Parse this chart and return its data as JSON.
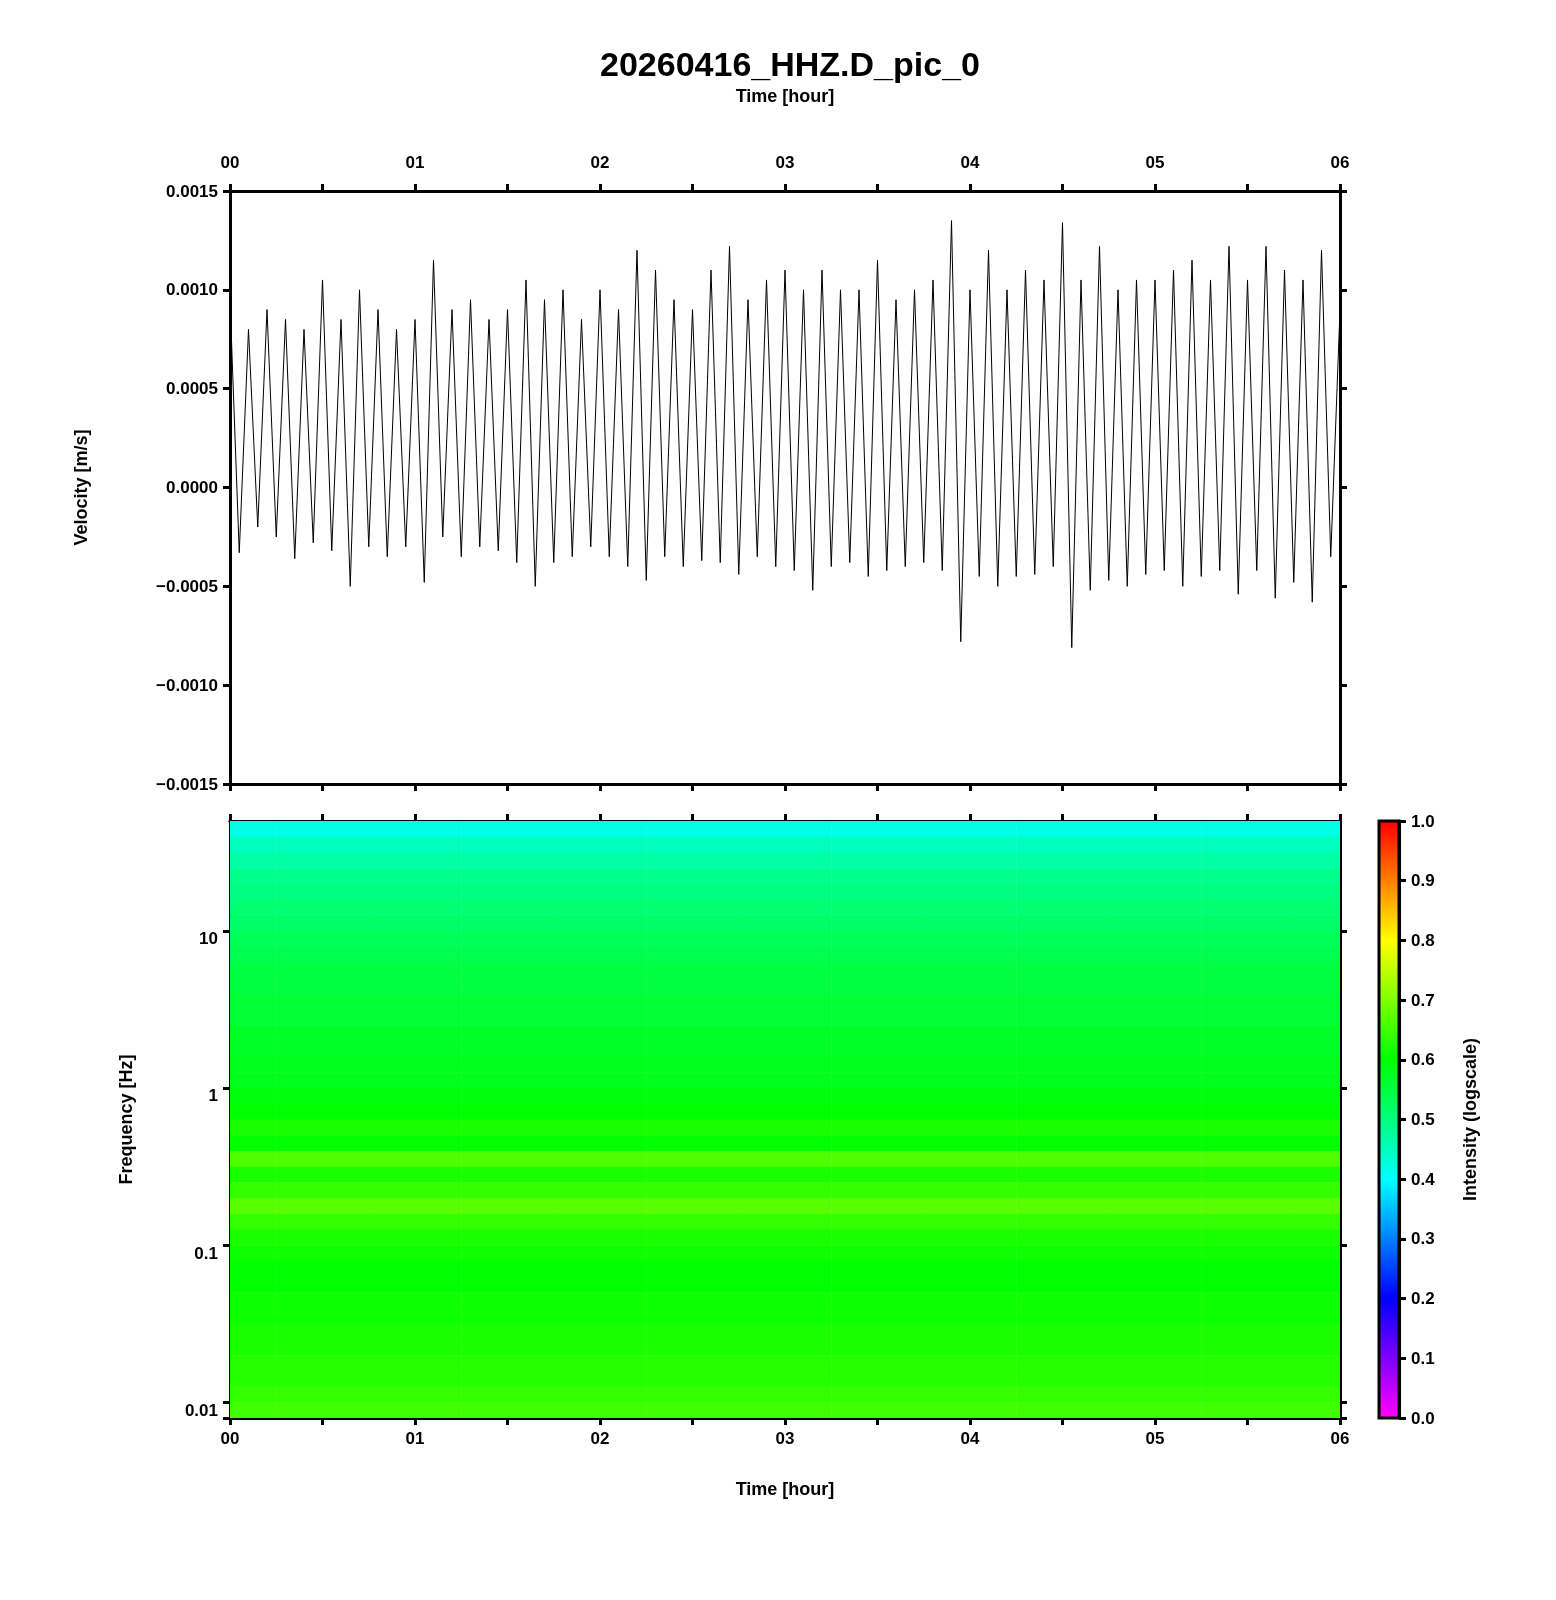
{
  "chart_data": [
    {
      "type": "line",
      "title": "20260416_HHZ.D_pic_0",
      "xlabel": "Time [hour]",
      "ylabel": "Velocity [m/s]",
      "x": [
        0,
        0.05,
        0.1,
        0.15,
        0.2,
        0.25,
        0.3,
        0.35,
        0.4,
        0.45,
        0.5,
        0.55,
        0.6,
        0.65,
        0.7,
        0.75,
        0.8,
        0.85,
        0.9,
        0.95,
        1,
        1.05,
        1.1,
        1.15,
        1.2,
        1.25,
        1.3,
        1.35,
        1.4,
        1.45,
        1.5,
        1.55,
        1.6,
        1.65,
        1.7,
        1.75,
        1.8,
        1.85,
        1.9,
        1.95,
        2,
        2.05,
        2.1,
        2.15,
        2.2,
        2.25,
        2.3,
        2.35,
        2.4,
        2.45,
        2.5,
        2.55,
        2.6,
        2.65,
        2.7,
        2.75,
        2.8,
        2.85,
        2.9,
        2.95,
        3,
        3.05,
        3.1,
        3.15,
        3.2,
        3.25,
        3.3,
        3.35,
        3.4,
        3.45,
        3.5,
        3.55,
        3.6,
        3.65,
        3.7,
        3.75,
        3.8,
        3.85,
        3.9,
        3.95,
        4,
        4.05,
        4.1,
        4.15,
        4.2,
        4.25,
        4.3,
        4.35,
        4.4,
        4.45,
        4.5,
        4.55,
        4.6,
        4.65,
        4.7,
        4.75,
        4.8,
        4.85,
        4.9,
        4.95,
        5,
        5.05,
        5.1,
        5.15,
        5.2,
        5.25,
        5.3,
        5.35,
        5.4,
        5.45,
        5.5,
        5.55,
        5.6,
        5.65,
        5.7,
        5.75,
        5.8,
        5.85,
        5.9,
        5.95,
        6
      ],
      "series": [
        {
          "color": "#000000",
          "values": [
            0.00095,
            -0.00033,
            0.0008,
            -0.0002,
            0.0009,
            -0.00025,
            0.00085,
            -0.00036,
            0.0008,
            -0.00028,
            0.00105,
            -0.00032,
            0.00085,
            -0.0005,
            0.001,
            -0.0003,
            0.0009,
            -0.00035,
            0.0008,
            -0.0003,
            0.00085,
            -0.00048,
            0.00115,
            -0.00025,
            0.0009,
            -0.00035,
            0.00095,
            -0.0003,
            0.00085,
            -0.00032,
            0.0009,
            -0.00038,
            0.00105,
            -0.0005,
            0.00095,
            -0.00038,
            0.001,
            -0.00035,
            0.00085,
            -0.0003,
            0.001,
            -0.00035,
            0.0009,
            -0.0004,
            0.0012,
            -0.00047,
            0.0011,
            -0.00035,
            0.00095,
            -0.0004,
            0.0009,
            -0.00037,
            0.0011,
            -0.00038,
            0.00122,
            -0.00044,
            0.00095,
            -0.00035,
            0.00105,
            -0.0004,
            0.0011,
            -0.00042,
            0.001,
            -0.00052,
            0.0011,
            -0.0004,
            0.001,
            -0.00038,
            0.001,
            -0.00045,
            0.00115,
            -0.00042,
            0.00095,
            -0.0004,
            0.001,
            -0.00038,
            0.00105,
            -0.00042,
            0.00135,
            -0.00078,
            0.001,
            -0.00045,
            0.0012,
            -0.0005,
            0.001,
            -0.00045,
            0.0011,
            -0.00044,
            0.00105,
            -0.0004,
            0.00134,
            -0.00081,
            0.00105,
            -0.00052,
            0.00122,
            -0.00047,
            0.001,
            -0.0005,
            0.00105,
            -0.00044,
            0.00105,
            -0.00042,
            0.0011,
            -0.0005,
            0.00115,
            -0.00045,
            0.00105,
            -0.00042,
            0.00122,
            -0.00054,
            0.00105,
            -0.00042,
            0.00122,
            -0.00056,
            0.0011,
            -0.00048,
            0.00105,
            -0.00058,
            0.0012,
            -0.00035,
            0.0009
          ]
        }
      ],
      "xlim": [
        0,
        6
      ],
      "xticks": [
        {
          "value": 0,
          "label": "00"
        },
        {
          "value": 0.5,
          "label": null
        },
        {
          "value": 1,
          "label": "01"
        },
        {
          "value": 1.5,
          "label": null
        },
        {
          "value": 2,
          "label": "02"
        },
        {
          "value": 2.5,
          "label": null
        },
        {
          "value": 3,
          "label": "03"
        },
        {
          "value": 3.5,
          "label": null
        },
        {
          "value": 4,
          "label": "04"
        },
        {
          "value": 4.5,
          "label": null
        },
        {
          "value": 5,
          "label": "05"
        },
        {
          "value": 5.5,
          "label": null
        },
        {
          "value": 6,
          "label": "06"
        }
      ],
      "ylim": [
        -0.0015,
        0.0015
      ],
      "yticks": [
        {
          "value": -0.0015,
          "label": "−0.0015"
        },
        {
          "value": -0.001,
          "label": "−0.0010"
        },
        {
          "value": -0.0005,
          "label": "−0.0005"
        },
        {
          "value": 0,
          "label": "0.0000"
        },
        {
          "value": 0.0005,
          "label": "0.0005"
        },
        {
          "value": 0.001,
          "label": "0.0010"
        },
        {
          "value": 0.0015,
          "label": "0.0015"
        }
      ]
    },
    {
      "type": "heatmap",
      "xlabel": "Time [hour]",
      "ylabel": "Frequency [Hz]",
      "clabel": "Intensity (logscale)",
      "categories": [
        "00",
        null,
        "01",
        null,
        "02",
        null,
        "03",
        null,
        "04",
        null,
        "05",
        null,
        "06"
      ],
      "y_categories": [
        null,
        null,
        null,
        null,
        null,
        null,
        null,
        "10",
        null,
        null,
        null,
        null,
        null,
        null,
        null,
        null,
        null,
        "1",
        null,
        null,
        null,
        null,
        null,
        null,
        null,
        null,
        null,
        "0.1",
        null,
        null,
        null,
        null,
        null,
        null,
        null,
        null,
        null,
        "0.01"
      ],
      "cells": [
        [
          0.42,
          0.42,
          0.42,
          0.42,
          0.42,
          0.42,
          0.42,
          0.42,
          0.42,
          0.42,
          0.42,
          0.42,
          0.42
        ],
        [
          0.45,
          0.45,
          0.45,
          0.45,
          0.45,
          0.45,
          0.45,
          0.45,
          0.45,
          0.45,
          0.45,
          0.45,
          0.45
        ],
        [
          0.47,
          0.47,
          0.47,
          0.47,
          0.47,
          0.47,
          0.47,
          0.47,
          0.47,
          0.47,
          0.47,
          0.47,
          0.47
        ],
        [
          0.49,
          0.49,
          0.49,
          0.49,
          0.49,
          0.49,
          0.49,
          0.49,
          0.49,
          0.49,
          0.49,
          0.49,
          0.49
        ],
        [
          0.5,
          0.5,
          0.5,
          0.5,
          0.5,
          0.5,
          0.5,
          0.5,
          0.5,
          0.5,
          0.5,
          0.5,
          0.5
        ],
        [
          0.51,
          0.51,
          0.51,
          0.51,
          0.51,
          0.51,
          0.51,
          0.51,
          0.51,
          0.51,
          0.51,
          0.51,
          0.51
        ],
        [
          0.52,
          0.52,
          0.52,
          0.52,
          0.52,
          0.52,
          0.52,
          0.52,
          0.52,
          0.52,
          0.52,
          0.52,
          0.52
        ],
        [
          0.53,
          0.53,
          0.53,
          0.53,
          0.53,
          0.53,
          0.53,
          0.53,
          0.53,
          0.53,
          0.53,
          0.53,
          0.53
        ],
        [
          0.54,
          0.54,
          0.54,
          0.54,
          0.54,
          0.54,
          0.54,
          0.54,
          0.54,
          0.54,
          0.54,
          0.54,
          0.54
        ],
        [
          0.55,
          0.55,
          0.55,
          0.55,
          0.55,
          0.55,
          0.55,
          0.55,
          0.55,
          0.55,
          0.55,
          0.55,
          0.55
        ],
        [
          0.55,
          0.55,
          0.55,
          0.55,
          0.55,
          0.55,
          0.55,
          0.55,
          0.55,
          0.55,
          0.55,
          0.55,
          0.55
        ],
        [
          0.56,
          0.56,
          0.56,
          0.56,
          0.56,
          0.56,
          0.56,
          0.56,
          0.56,
          0.56,
          0.56,
          0.56,
          0.56
        ],
        [
          0.56,
          0.56,
          0.56,
          0.56,
          0.56,
          0.56,
          0.56,
          0.56,
          0.56,
          0.56,
          0.56,
          0.56,
          0.56
        ],
        [
          0.57,
          0.57,
          0.57,
          0.57,
          0.57,
          0.57,
          0.57,
          0.57,
          0.57,
          0.57,
          0.57,
          0.57,
          0.57
        ],
        [
          0.57,
          0.57,
          0.57,
          0.57,
          0.57,
          0.57,
          0.57,
          0.57,
          0.57,
          0.57,
          0.57,
          0.57,
          0.57
        ],
        [
          0.58,
          0.58,
          0.58,
          0.58,
          0.58,
          0.58,
          0.58,
          0.58,
          0.58,
          0.58,
          0.58,
          0.58,
          0.58
        ],
        [
          0.58,
          0.58,
          0.58,
          0.58,
          0.58,
          0.58,
          0.58,
          0.58,
          0.58,
          0.58,
          0.58,
          0.58,
          0.58
        ],
        [
          0.59,
          0.59,
          0.59,
          0.59,
          0.59,
          0.59,
          0.59,
          0.59,
          0.59,
          0.59,
          0.59,
          0.59,
          0.59
        ],
        [
          0.6,
          0.6,
          0.6,
          0.6,
          0.6,
          0.6,
          0.6,
          0.6,
          0.6,
          0.6,
          0.6,
          0.6,
          0.6
        ],
        [
          0.62,
          0.62,
          0.62,
          0.62,
          0.62,
          0.62,
          0.62,
          0.62,
          0.62,
          0.62,
          0.62,
          0.62,
          0.62
        ],
        [
          0.6,
          0.6,
          0.6,
          0.6,
          0.6,
          0.6,
          0.6,
          0.6,
          0.6,
          0.6,
          0.6,
          0.6,
          0.6
        ],
        [
          0.66,
          0.66,
          0.66,
          0.66,
          0.66,
          0.66,
          0.66,
          0.66,
          0.66,
          0.66,
          0.66,
          0.66,
          0.66
        ],
        [
          0.62,
          0.62,
          0.62,
          0.62,
          0.62,
          0.62,
          0.62,
          0.62,
          0.62,
          0.62,
          0.62,
          0.62,
          0.62
        ],
        [
          0.64,
          0.64,
          0.64,
          0.64,
          0.64,
          0.64,
          0.64,
          0.64,
          0.64,
          0.64,
          0.64,
          0.64,
          0.64
        ],
        [
          0.67,
          0.67,
          0.67,
          0.67,
          0.67,
          0.67,
          0.67,
          0.67,
          0.67,
          0.67,
          0.67,
          0.67,
          0.67
        ],
        [
          0.64,
          0.64,
          0.64,
          0.64,
          0.64,
          0.64,
          0.64,
          0.64,
          0.64,
          0.64,
          0.64,
          0.64,
          0.64
        ],
        [
          0.62,
          0.62,
          0.62,
          0.62,
          0.62,
          0.62,
          0.62,
          0.62,
          0.62,
          0.62,
          0.62,
          0.62,
          0.62
        ],
        [
          0.61,
          0.61,
          0.61,
          0.61,
          0.61,
          0.61,
          0.61,
          0.61,
          0.61,
          0.61,
          0.61,
          0.61,
          0.61
        ],
        [
          0.6,
          0.6,
          0.6,
          0.6,
          0.6,
          0.6,
          0.6,
          0.6,
          0.6,
          0.6,
          0.6,
          0.6,
          0.6
        ],
        [
          0.6,
          0.6,
          0.6,
          0.6,
          0.6,
          0.6,
          0.6,
          0.6,
          0.6,
          0.6,
          0.6,
          0.6,
          0.6
        ],
        [
          0.61,
          0.61,
          0.61,
          0.61,
          0.61,
          0.61,
          0.61,
          0.61,
          0.61,
          0.61,
          0.61,
          0.61,
          0.61
        ],
        [
          0.61,
          0.61,
          0.61,
          0.61,
          0.61,
          0.61,
          0.61,
          0.61,
          0.61,
          0.61,
          0.61,
          0.61,
          0.61
        ],
        [
          0.62,
          0.62,
          0.62,
          0.62,
          0.62,
          0.62,
          0.62,
          0.62,
          0.62,
          0.62,
          0.62,
          0.62,
          0.62
        ],
        [
          0.62,
          0.62,
          0.62,
          0.62,
          0.62,
          0.62,
          0.62,
          0.62,
          0.62,
          0.62,
          0.62,
          0.62,
          0.62
        ],
        [
          0.63,
          0.63,
          0.63,
          0.63,
          0.63,
          0.63,
          0.63,
          0.63,
          0.63,
          0.63,
          0.63,
          0.63,
          0.63
        ],
        [
          0.63,
          0.63,
          0.63,
          0.63,
          0.63,
          0.63,
          0.63,
          0.63,
          0.63,
          0.63,
          0.63,
          0.63,
          0.63
        ],
        [
          0.64,
          0.64,
          0.64,
          0.64,
          0.64,
          0.64,
          0.64,
          0.64,
          0.64,
          0.64,
          0.64,
          0.64,
          0.64
        ],
        [
          0.65,
          0.65,
          0.65,
          0.65,
          0.65,
          0.65,
          0.65,
          0.65,
          0.65,
          0.65,
          0.65,
          0.65,
          0.65
        ]
      ],
      "clim": [
        0,
        1
      ],
      "cticks": [
        {
          "value": 0,
          "label": "0.0"
        },
        {
          "value": 0.1,
          "label": "0.1"
        },
        {
          "value": 0.2,
          "label": "0.2"
        },
        {
          "value": 0.3,
          "label": "0.3"
        },
        {
          "value": 0.4,
          "label": "0.4"
        },
        {
          "value": 0.5,
          "label": "0.5"
        },
        {
          "value": 0.6,
          "label": "0.6"
        },
        {
          "value": 0.7,
          "label": "0.7"
        },
        {
          "value": 0.8,
          "label": "0.8"
        },
        {
          "value": 0.9,
          "label": "0.9"
        },
        {
          "value": 1,
          "label": "1.0"
        }
      ]
    }
  ]
}
